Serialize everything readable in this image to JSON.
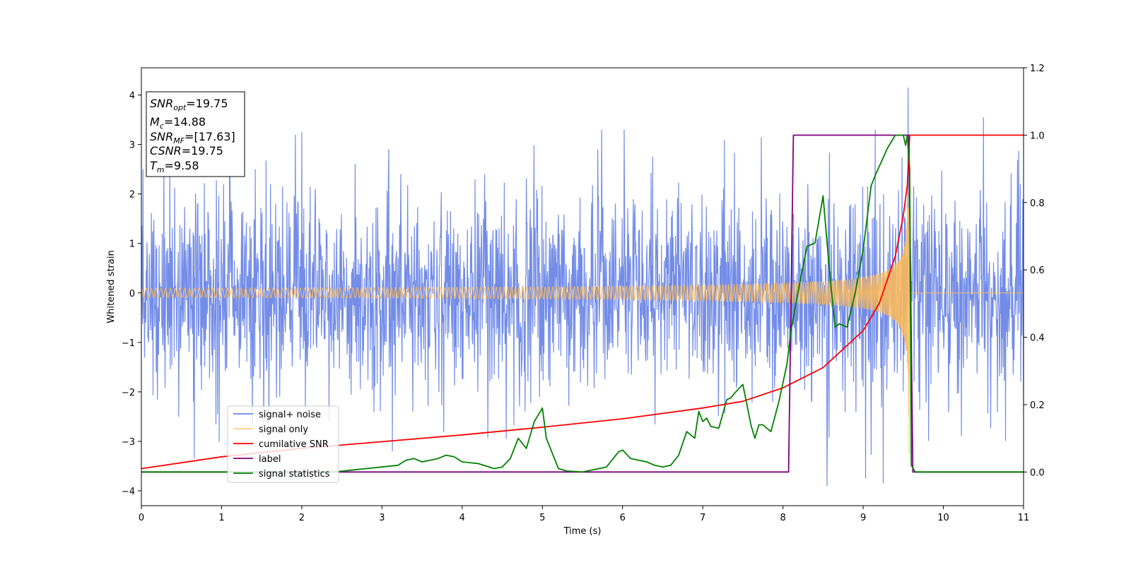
{
  "chart_data": {
    "type": "line",
    "title": "",
    "xlabel": "Time (s)",
    "ylabel": "Whitened strain",
    "y2label": "",
    "xlim": [
      0,
      11
    ],
    "ylim": [
      -4.3,
      4.55
    ],
    "y2lim": [
      -0.1,
      1.2
    ],
    "xticks": [
      "0",
      "1",
      "2",
      "3",
      "4",
      "5",
      "6",
      "7",
      "8",
      "9",
      "10",
      "11"
    ],
    "yticks": [
      "−4",
      "−3",
      "−2",
      "−1",
      "0",
      "1",
      "2",
      "3",
      "4"
    ],
    "y2ticks": [
      "0.0",
      "0.2",
      "0.4",
      "0.6",
      "0.8",
      "1.0",
      "1.2"
    ],
    "grid": false,
    "legend_position": "lower-left",
    "info_box": {
      "snr_opt": {
        "sym": "SNR",
        "sub": "opt",
        "value": "=19.75"
      },
      "mc": {
        "sym": "M",
        "sub": "c",
        "value": "=14.88"
      },
      "snr_mf": {
        "sym": "SNR",
        "sub": "MF",
        "value": "=[17.63]"
      },
      "csnr": {
        "sym": "CSNR",
        "value": "=19.75"
      },
      "tm": {
        "sym": "T",
        "sub": "m",
        "value": "=9.58"
      }
    },
    "series": [
      {
        "name": "signal+ noise",
        "axis": "left",
        "color": "#6b86e6",
        "sample_dt": 0.005,
        "noise_sigma": 1.0,
        "envelope_approx": 2.3,
        "peak_values": [
          {
            "x": 0.02,
            "y": 2.5
          },
          {
            "x": 0.28,
            "y": 2.85
          },
          {
            "x": 0.66,
            "y": -3.35
          },
          {
            "x": 1.1,
            "y": 2.8
          },
          {
            "x": 1.92,
            "y": 3.2
          },
          {
            "x": 2.0,
            "y": 3.25
          },
          {
            "x": 3.13,
            "y": -3.2
          },
          {
            "x": 4.55,
            "y": -2.95
          },
          {
            "x": 5.74,
            "y": 3.3
          },
          {
            "x": 6.02,
            "y": 3.3
          },
          {
            "x": 7.27,
            "y": 3.1
          },
          {
            "x": 8.55,
            "y": -3.9
          },
          {
            "x": 9.03,
            "y": -3.75
          },
          {
            "x": 9.25,
            "y": -3.85
          },
          {
            "x": 9.56,
            "y": 4.15
          },
          {
            "x": 10.5,
            "y": 3.55
          }
        ]
      },
      {
        "name": "signal only",
        "axis": "left",
        "color": "#ffbb55",
        "model": "chirp",
        "start_amplitude": 0.03,
        "peak_amplitude": 3.6,
        "merger_time": 9.58,
        "after_merger": 0
      },
      {
        "name": "cumilative SNR",
        "axis": "right",
        "color": "#ff0000",
        "x": [
          0,
          1,
          2,
          3,
          4,
          5,
          6,
          7,
          7.5,
          8,
          8.5,
          9,
          9.2,
          9.4,
          9.5,
          9.55,
          9.58,
          11
        ],
        "values": [
          0.01,
          0.045,
          0.07,
          0.09,
          0.11,
          0.133,
          0.158,
          0.19,
          0.21,
          0.25,
          0.31,
          0.42,
          0.5,
          0.64,
          0.76,
          0.85,
          1.0,
          1.0
        ]
      },
      {
        "name": "label",
        "axis": "right",
        "color": "#800080",
        "x": [
          0,
          8.07,
          8.13,
          9.57,
          9.62,
          11
        ],
        "values": [
          0.0,
          0.0,
          1.0,
          1.0,
          0.0,
          0.0
        ]
      },
      {
        "name": "signal statistics",
        "axis": "right",
        "color": "#008000",
        "x": [
          0,
          2.4,
          2.8,
          3.0,
          3.2,
          3.3,
          3.4,
          3.5,
          3.7,
          3.8,
          3.9,
          4.0,
          4.2,
          4.4,
          4.5,
          4.6,
          4.7,
          4.8,
          4.9,
          5.0,
          5.05,
          5.15,
          5.2,
          5.3,
          5.5,
          5.8,
          5.95,
          6.0,
          6.1,
          6.2,
          6.3,
          6.4,
          6.5,
          6.6,
          6.7,
          6.8,
          6.9,
          6.95,
          7.0,
          7.05,
          7.1,
          7.2,
          7.3,
          7.35,
          7.4,
          7.5,
          7.6,
          7.65,
          7.7,
          7.75,
          7.8,
          7.85,
          7.95,
          8.05,
          8.1,
          8.2,
          8.3,
          8.4,
          8.5,
          8.55,
          8.6,
          8.65,
          8.7,
          8.8,
          8.9,
          9.0,
          9.1,
          9.15,
          9.3,
          9.4,
          9.5,
          9.53,
          9.55,
          9.58,
          9.6,
          9.65,
          11
        ],
        "values": [
          0.0,
          0.0,
          0.01,
          0.015,
          0.02,
          0.035,
          0.04,
          0.03,
          0.04,
          0.05,
          0.045,
          0.03,
          0.025,
          0.01,
          0.015,
          0.04,
          0.1,
          0.07,
          0.15,
          0.19,
          0.1,
          0.04,
          0.01,
          0.003,
          0.0,
          0.015,
          0.06,
          0.065,
          0.04,
          0.035,
          0.03,
          0.02,
          0.015,
          0.02,
          0.05,
          0.12,
          0.1,
          0.18,
          0.15,
          0.16,
          0.135,
          0.13,
          0.215,
          0.22,
          0.235,
          0.26,
          0.14,
          0.1,
          0.14,
          0.14,
          0.13,
          0.12,
          0.21,
          0.32,
          0.42,
          0.55,
          0.67,
          0.68,
          0.82,
          0.68,
          0.55,
          0.43,
          0.44,
          0.43,
          0.53,
          0.66,
          0.85,
          0.88,
          0.96,
          1.0,
          1.0,
          0.97,
          1.0,
          0.9,
          0.02,
          0.0,
          0.0
        ]
      }
    ]
  }
}
